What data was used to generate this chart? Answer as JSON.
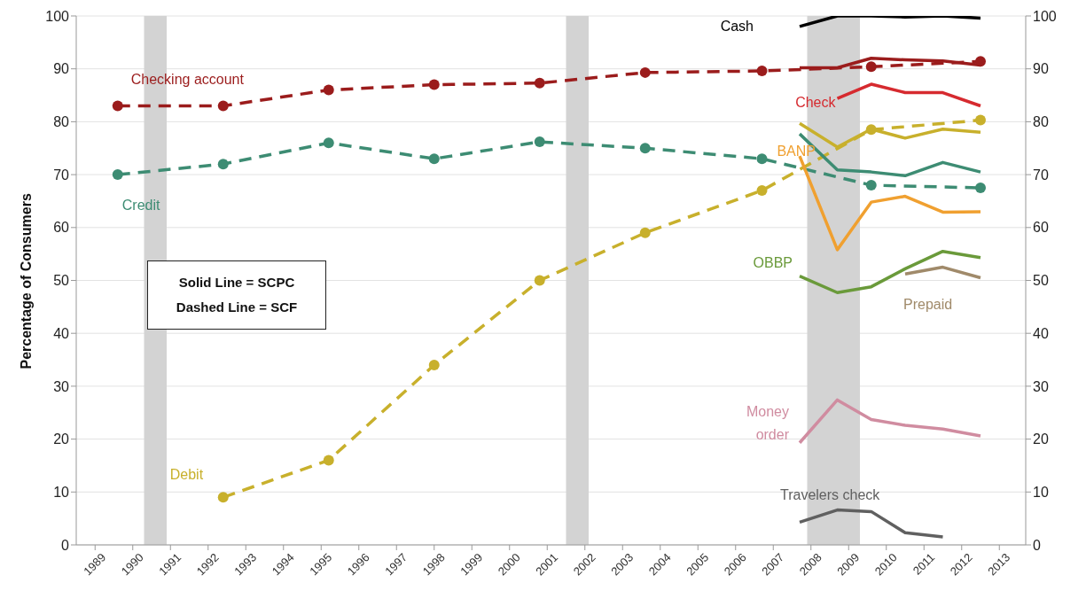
{
  "chart_data": {
    "type": "line",
    "ylabel": "Percentage of Consumers",
    "xlim": [
      1988.5,
      2013.7
    ],
    "xticks": [
      1989,
      1990,
      1991,
      1992,
      1993,
      1994,
      1995,
      1996,
      1997,
      1998,
      1999,
      2000,
      2001,
      2002,
      2003,
      2004,
      2005,
      2006,
      2007,
      2008,
      2009,
      2010,
      2011,
      2012,
      2013
    ],
    "ylim": [
      0,
      100
    ],
    "yticks": [
      0,
      10,
      20,
      30,
      40,
      50,
      60,
      70,
      80,
      90,
      100
    ],
    "y2lim": [
      0,
      100
    ],
    "y2ticks": [
      0,
      10,
      20,
      30,
      40,
      50,
      60,
      70,
      80,
      90,
      100
    ],
    "grid": "y",
    "legend": false,
    "annotations": [
      "Solid Line = SCPC",
      "Dashed Line = SCF"
    ],
    "bands": [
      {
        "axis": "x",
        "from": 1990.3,
        "to": 1990.9,
        "color": "#d3d3d3"
      },
      {
        "axis": "x",
        "from": 2001.5,
        "to": 2002.1,
        "color": "#d3d3d3"
      },
      {
        "axis": "x",
        "from": 2007.9,
        "to": 2009.3,
        "color": "#d3d3d3"
      }
    ],
    "series": [
      {
        "name": "Checking account",
        "color": "#9b1c1c",
        "line_style": "dashed",
        "marker": "circle",
        "x": [
          1989.6,
          1992.4,
          1995.2,
          1998.0,
          2000.8,
          2003.6,
          2006.7,
          2009.6,
          2012.5
        ],
        "values": [
          83,
          83,
          86,
          87,
          87.3,
          89.3,
          89.6,
          90.4,
          91.4
        ]
      },
      {
        "name": "Credit",
        "color": "#3d8c73",
        "line_style": "dashed",
        "marker": "circle",
        "x": [
          1989.6,
          1992.4,
          1995.2,
          1998.0,
          2000.8,
          2003.6,
          2006.7,
          2009.6,
          2012.5
        ],
        "values": [
          70,
          72,
          76,
          73,
          76.2,
          75,
          73,
          68,
          67.5
        ]
      },
      {
        "name": "Debit",
        "color": "#c8b02c",
        "line_style": "dashed",
        "marker": "circle",
        "x": [
          1992.4,
          1995.2,
          1998.0,
          2000.8,
          2003.6,
          2006.7,
          2009.6,
          2012.5
        ],
        "values": [
          9,
          16,
          34,
          50,
          59,
          67,
          78.5,
          80.3
        ]
      },
      {
        "name": "Cash",
        "color": "#000000",
        "line_style": "solid",
        "marker": "none",
        "x": [
          2007.7,
          2008.7,
          2009.6,
          2010.5,
          2011.5,
          2012.5
        ],
        "values": [
          98,
          100,
          100,
          99.8,
          100,
          99.6
        ]
      },
      {
        "color": "#9b1c1c",
        "line_style": "solid",
        "marker": "none",
        "x": [
          2007.7,
          2008.7,
          2009.6,
          2010.5,
          2011.5,
          2012.5
        ],
        "values": [
          90.2,
          90.2,
          92,
          91.7,
          91.5,
          90.7
        ]
      },
      {
        "name": "Check",
        "color": "#d62a2f",
        "line_style": "solid",
        "marker": "none",
        "x": [
          2008.7,
          2009.6,
          2010.5,
          2011.5,
          2012.5
        ],
        "values": [
          84.4,
          87.1,
          85.5,
          85.5,
          83
        ]
      },
      {
        "color": "#c8b02c",
        "line_style": "solid",
        "marker": "none",
        "x": [
          2007.7,
          2008.7,
          2009.6,
          2010.5,
          2011.5,
          2012.5
        ],
        "values": [
          79.7,
          75.2,
          78.6,
          76.9,
          78.6,
          78
        ]
      },
      {
        "color": "#3d8c73",
        "line_style": "solid",
        "marker": "none",
        "x": [
          2007.7,
          2008.7,
          2009.6,
          2010.5,
          2011.5,
          2012.5
        ],
        "values": [
          77.7,
          70.9,
          70.5,
          69.8,
          72.3,
          70.5
        ]
      },
      {
        "name": "BANP",
        "color": "#f0a030",
        "line_style": "solid",
        "marker": "none",
        "x": [
          2007.7,
          2008.7,
          2009.6,
          2010.5,
          2011.5,
          2012.5
        ],
        "values": [
          73.5,
          55.8,
          64.8,
          65.9,
          62.9,
          63
        ]
      },
      {
        "name": "OBBP",
        "color": "#6a9a3a",
        "line_style": "solid",
        "marker": "none",
        "x": [
          2007.7,
          2008.7,
          2009.6,
          2010.5,
          2011.5,
          2012.5
        ],
        "values": [
          50.8,
          47.7,
          48.8,
          52.2,
          55.5,
          54.3
        ]
      },
      {
        "name": "Prepaid",
        "color": "#a08a6a",
        "line_style": "solid",
        "marker": "none",
        "x": [
          2010.5,
          2011.5,
          2012.5
        ],
        "values": [
          51.2,
          52.5,
          50.5
        ]
      },
      {
        "name": "Money order",
        "color": "#d08ca0",
        "line_style": "solid",
        "marker": "none",
        "x": [
          2007.7,
          2008.7,
          2009.6,
          2010.5,
          2011.5,
          2012.5
        ],
        "values": [
          19.3,
          27.4,
          23.7,
          22.6,
          21.9,
          20.6
        ]
      },
      {
        "name": "Travelers check",
        "color": "#606060",
        "line_style": "solid",
        "marker": "none",
        "x": [
          2007.7,
          2008.7,
          2009.6,
          2010.5,
          2011.5
        ],
        "values": [
          4.3,
          6.6,
          6.3,
          2.3,
          1.5
        ]
      }
    ]
  }
}
